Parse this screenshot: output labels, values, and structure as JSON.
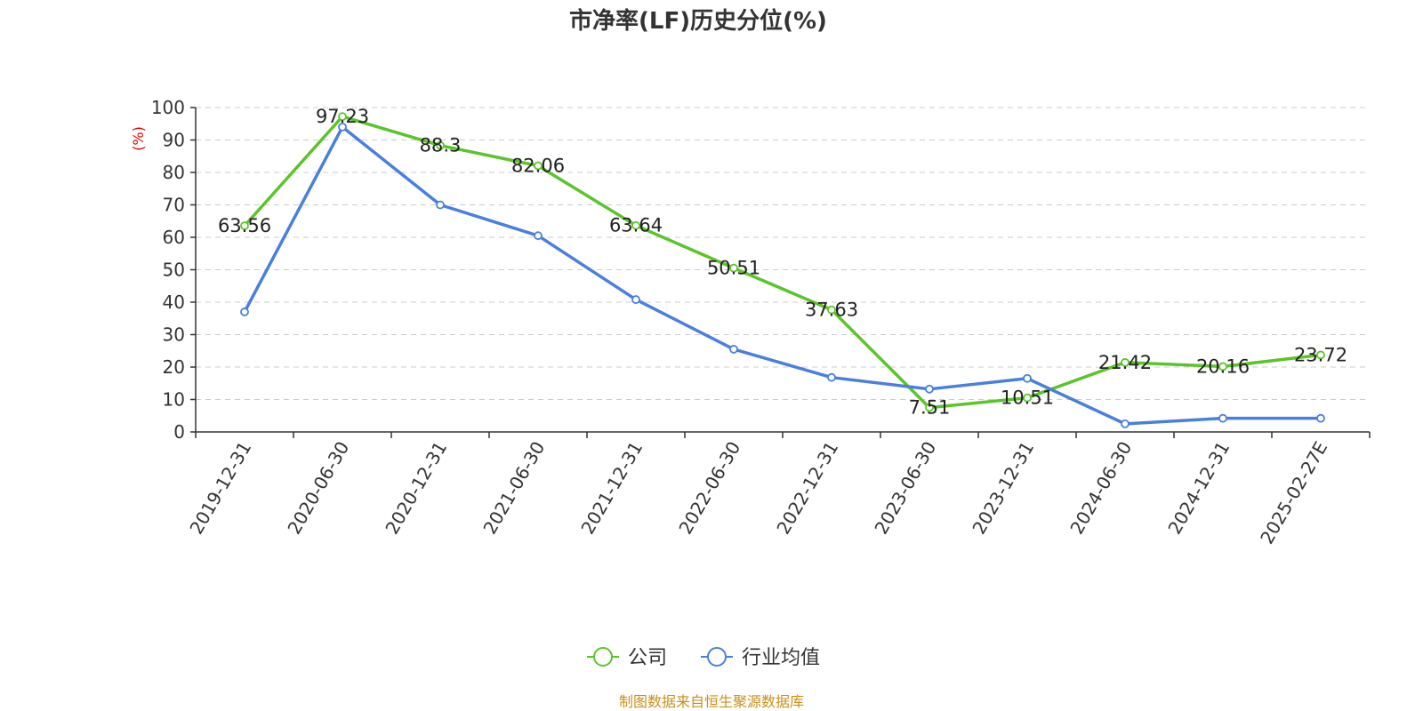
{
  "chart_data": {
    "type": "line",
    "title": "市净率(LF)历史分位(%)",
    "ylabel": "(%)",
    "xlabel": "",
    "ylim": [
      0,
      100
    ],
    "yticks": [
      0,
      10,
      20,
      30,
      40,
      50,
      60,
      70,
      80,
      90,
      100
    ],
    "categories": [
      "2019-12-31",
      "2020-06-30",
      "2020-12-31",
      "2021-06-30",
      "2021-12-31",
      "2022-06-30",
      "2022-12-31",
      "2023-06-30",
      "2023-12-31",
      "2024-06-30",
      "2024-12-31",
      "2025-02-27E"
    ],
    "grid": true,
    "legend_position": "bottom",
    "series": [
      {
        "name": "公司",
        "color": "#5cc42b",
        "values": [
          63.56,
          97.23,
          88.3,
          82.06,
          63.64,
          50.51,
          37.63,
          7.51,
          10.51,
          21.42,
          20.16,
          23.72
        ],
        "labels": [
          "63.56",
          "97.23",
          "88.3",
          "82.06",
          "63.64",
          "50.51",
          "37.63",
          "7.51",
          "10.51",
          "21.42",
          "20.16",
          "23.72"
        ]
      },
      {
        "name": "行业均值",
        "color": "#4a7fdd",
        "values": [
          37,
          94,
          70,
          60.5,
          40.8,
          25.5,
          16.8,
          13.2,
          16.5,
          2.5,
          4.2,
          4.2
        ]
      }
    ]
  },
  "source": "制图数据来自恒生聚源数据库"
}
